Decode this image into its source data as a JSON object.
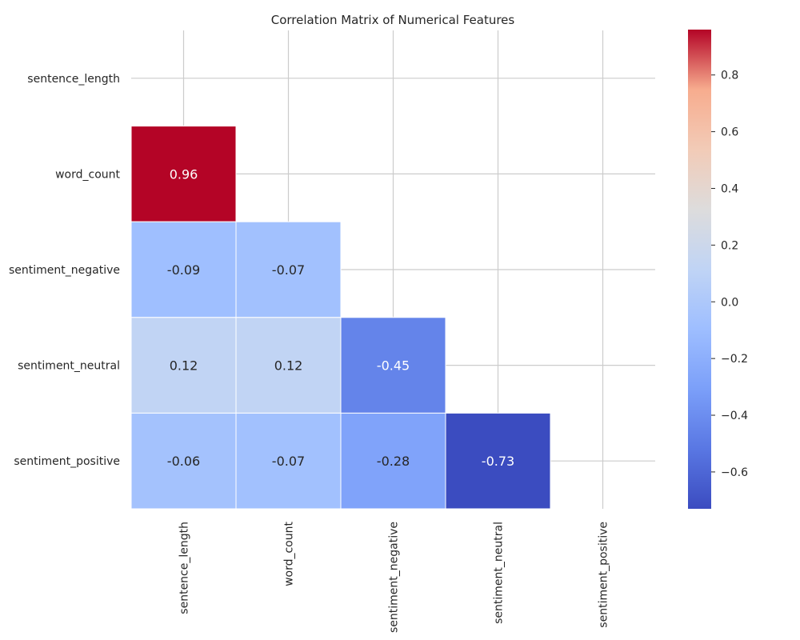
{
  "chart_data": {
    "type": "heatmap",
    "title": "Correlation Matrix of Numerical Features",
    "xlabel": "",
    "ylabel": "",
    "labels": [
      "sentence_length",
      "word_count",
      "sentiment_negative",
      "sentiment_neutral",
      "sentiment_positive"
    ],
    "matrix": [
      [
        null,
        null,
        null,
        null,
        null
      ],
      [
        0.96,
        null,
        null,
        null,
        null
      ],
      [
        -0.09,
        -0.07,
        null,
        null,
        null
      ],
      [
        0.12,
        0.12,
        -0.45,
        null,
        null
      ],
      [
        -0.06,
        -0.07,
        -0.28,
        -0.73,
        null
      ]
    ],
    "annotations": [
      [
        "",
        "",
        "",
        "",
        ""
      ],
      [
        "0.96",
        "",
        "",
        "",
        ""
      ],
      [
        "-0.09",
        "-0.07",
        "",
        "",
        ""
      ],
      [
        "0.12",
        "0.12",
        "-0.45",
        "",
        ""
      ],
      [
        "-0.06",
        "-0.07",
        "-0.28",
        "-0.73",
        ""
      ]
    ],
    "mask": "upper-triangle-including-diagonal",
    "colormap": "coolwarm",
    "color_range": [
      -0.73,
      0.96
    ],
    "colorbar_ticks": [
      0.8,
      0.6,
      0.4,
      0.2,
      0.0,
      -0.2,
      -0.4,
      -0.6
    ],
    "colorbar_tick_labels": [
      "0.8",
      "0.6",
      "0.4",
      "0.2",
      "0.0",
      "−0.2",
      "−0.4",
      "−0.6"
    ],
    "grid": true,
    "colorbar_placement": "right"
  }
}
